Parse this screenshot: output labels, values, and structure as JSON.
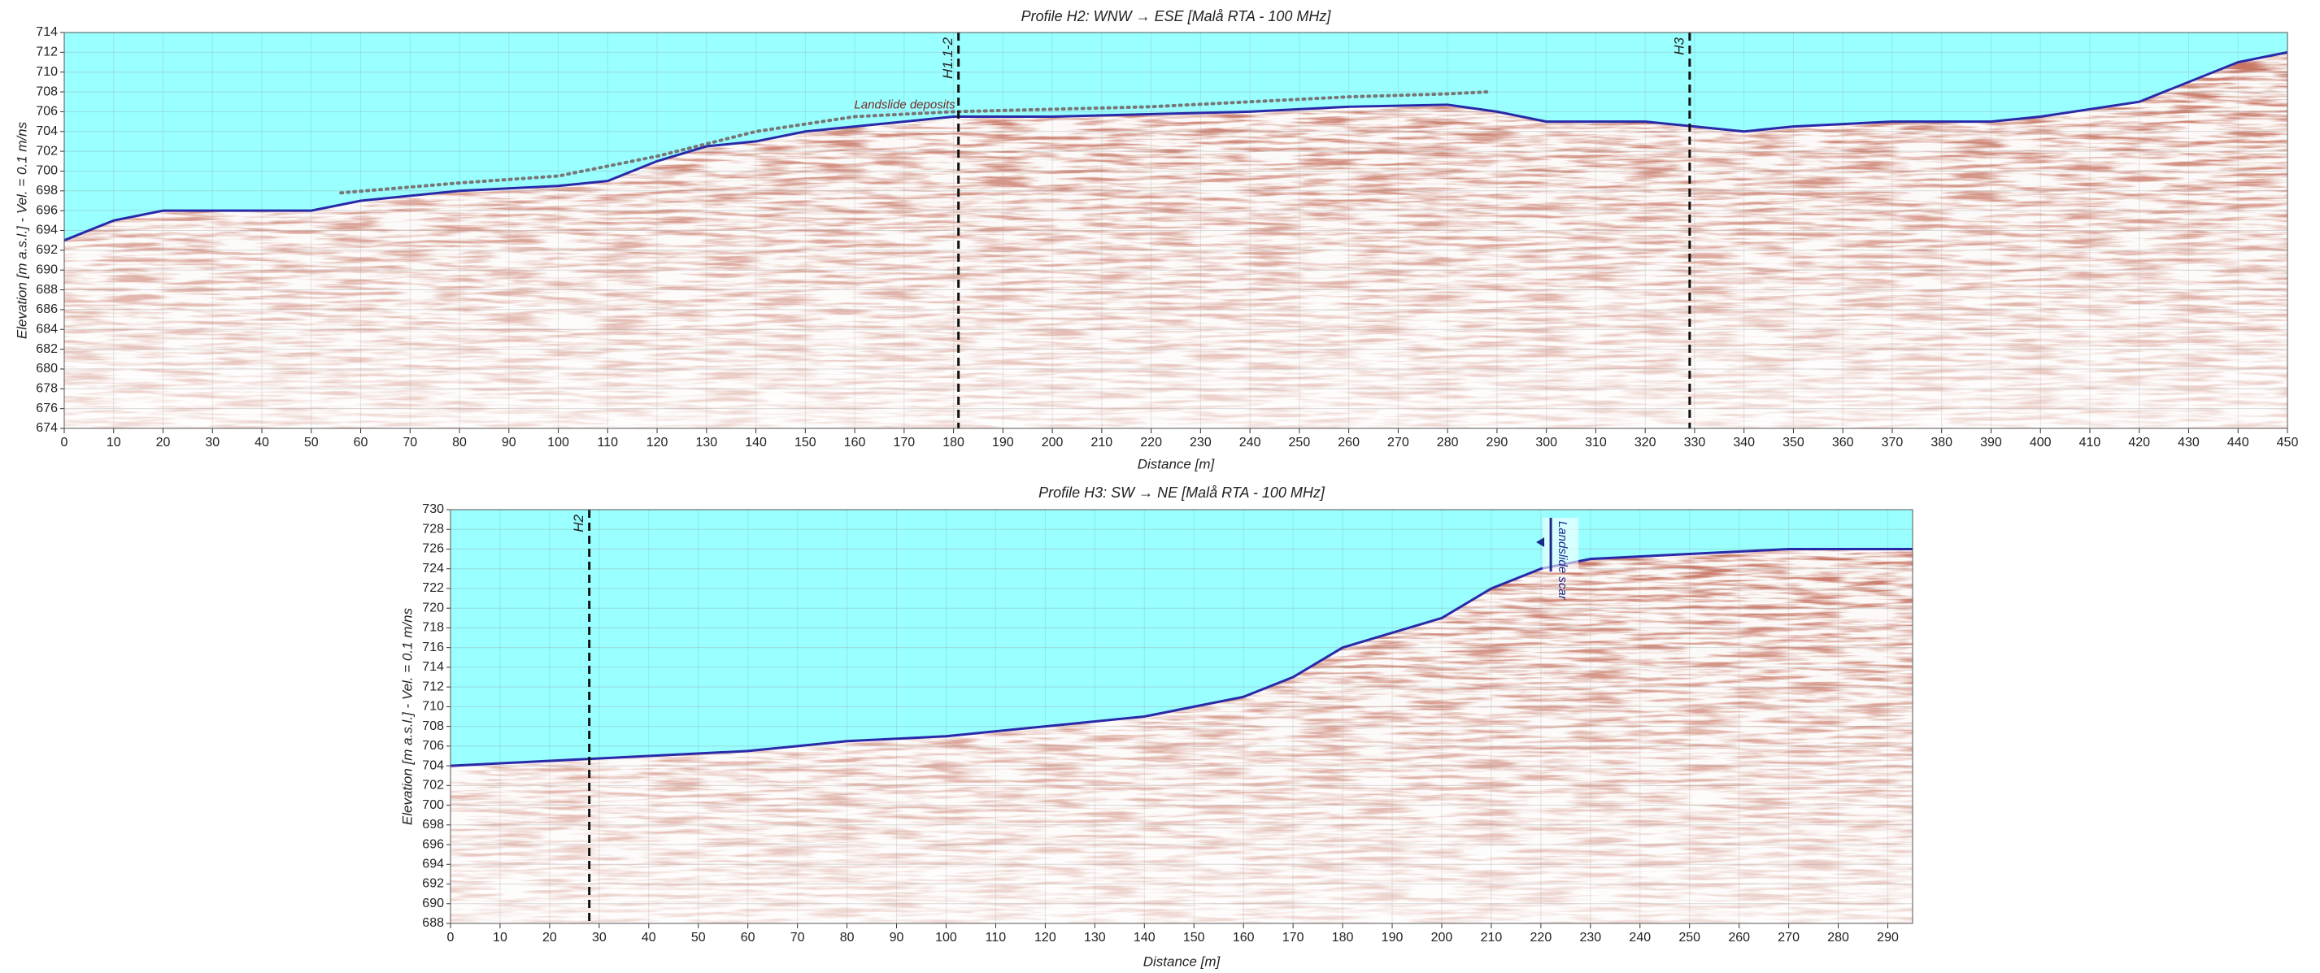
{
  "chart_data": [
    {
      "type": "radargram",
      "title": "Profile H2: WNW → ESE [Malå RTA - 100 MHz]",
      "x_label": "Distance [m]",
      "y_label": "Elevation [m a.s.l.] - Vel. = 0.1 m/ns",
      "xlim": [
        0,
        450
      ],
      "ylim": [
        674,
        714
      ],
      "xticks": [
        0,
        10,
        20,
        30,
        40,
        50,
        60,
        70,
        80,
        90,
        100,
        110,
        120,
        130,
        140,
        150,
        160,
        170,
        180,
        190,
        200,
        210,
        220,
        230,
        240,
        250,
        260,
        270,
        280,
        290,
        300,
        310,
        320,
        330,
        340,
        350,
        360,
        370,
        380,
        390,
        400,
        410,
        420,
        430,
        440,
        450
      ],
      "yticks": [
        674,
        676,
        678,
        680,
        682,
        684,
        686,
        688,
        690,
        692,
        694,
        696,
        698,
        700,
        702,
        704,
        706,
        708,
        710,
        712,
        714
      ],
      "grid": true,
      "sky_color": "#99ffff",
      "surface": {
        "x": [
          0,
          10,
          20,
          50,
          60,
          80,
          100,
          110,
          120,
          130,
          140,
          150,
          170,
          180,
          200,
          240,
          260,
          280,
          290,
          300,
          320,
          330,
          340,
          350,
          370,
          390,
          400,
          420,
          440,
          450
        ],
        "values": [
          693,
          695,
          696,
          696,
          697,
          698,
          698.5,
          699,
          701,
          702.5,
          703,
          704,
          705,
          705.5,
          705.5,
          706,
          706.5,
          706.7,
          706,
          705,
          705,
          704.5,
          704,
          704.5,
          705,
          705,
          705.5,
          707,
          711,
          712
        ]
      },
      "deposits": {
        "label": "Landslide deposits",
        "x": [
          56,
          80,
          100,
          120,
          140,
          160,
          180,
          220,
          240,
          260,
          280,
          288
        ],
        "values": [
          697.8,
          698.8,
          699.5,
          701.5,
          704,
          705.5,
          706,
          706.5,
          707,
          707.5,
          707.8,
          708
        ]
      },
      "markers": [
        {
          "x": 181,
          "label": "H1.1-2"
        },
        {
          "x": 329,
          "label": "H3"
        }
      ]
    },
    {
      "type": "radargram",
      "title": "Profile H3: SW → NE [Malå RTA - 100 MHz]",
      "x_label": "Distance [m]",
      "y_label": "Elevation [m a.s.l.] - Vel. = 0.1 m/ns",
      "xlim": [
        0,
        295
      ],
      "ylim": [
        688,
        730
      ],
      "xticks": [
        0,
        10,
        20,
        30,
        40,
        50,
        60,
        70,
        80,
        90,
        100,
        110,
        120,
        130,
        140,
        150,
        160,
        170,
        180,
        190,
        200,
        210,
        220,
        230,
        240,
        250,
        260,
        270,
        280,
        290
      ],
      "yticks": [
        688,
        690,
        692,
        694,
        696,
        698,
        700,
        702,
        704,
        706,
        708,
        710,
        712,
        714,
        716,
        718,
        720,
        722,
        724,
        726,
        728,
        730
      ],
      "grid": true,
      "sky_color": "#99ffff",
      "surface": {
        "x": [
          0,
          20,
          40,
          60,
          80,
          100,
          120,
          140,
          150,
          160,
          170,
          180,
          190,
          200,
          210,
          220,
          230,
          250,
          270,
          295
        ],
        "values": [
          704,
          704.5,
          705,
          705.5,
          706.5,
          707,
          708,
          709,
          710,
          711,
          713,
          716,
          717.5,
          719,
          722,
          724,
          725,
          725.5,
          726,
          726
        ]
      },
      "markers": [
        {
          "x": 28,
          "label": "H2"
        }
      ],
      "scar": {
        "x": 222,
        "label": "Landslide scar"
      }
    }
  ]
}
